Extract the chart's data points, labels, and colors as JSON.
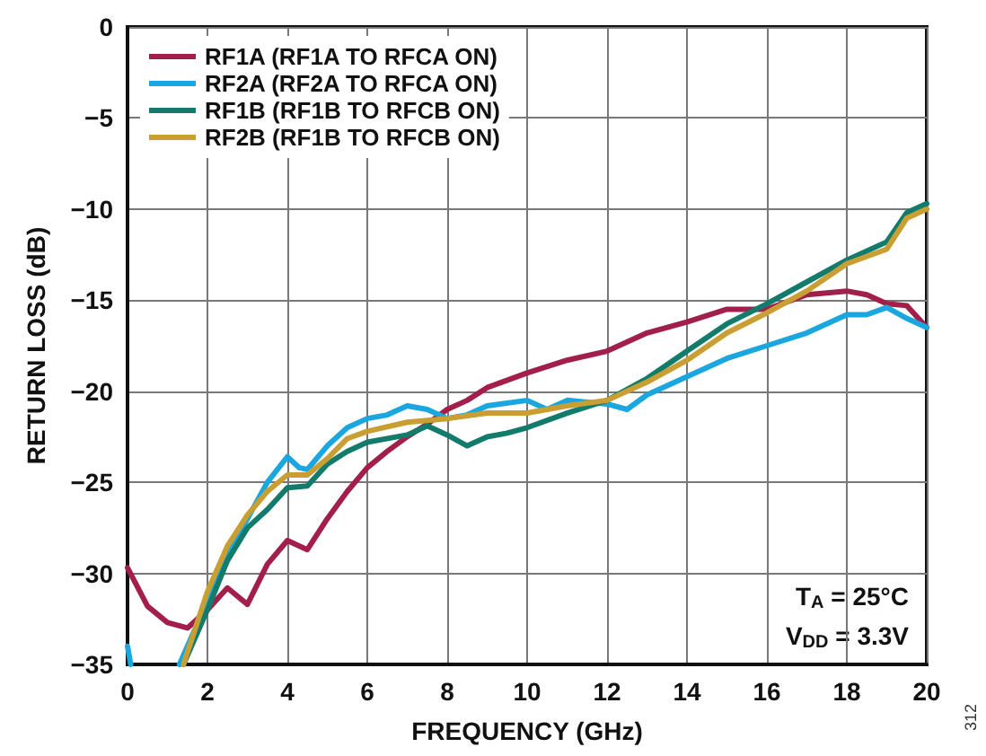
{
  "chart_data": {
    "type": "line",
    "xlabel": "FREQUENCY (GHz)",
    "ylabel": "RETURN LOSS (dB)",
    "xlim": [
      0,
      20
    ],
    "xticks": [
      0,
      2,
      4,
      6,
      8,
      10,
      12,
      14,
      16,
      18,
      20
    ],
    "ylim": [
      -35,
      0
    ],
    "yticks": [
      -35,
      -30,
      -25,
      -20,
      -15,
      -10,
      -5,
      0
    ],
    "grid": true,
    "legend": "top left",
    "line_style": "solid",
    "marker": "none",
    "annotations": [
      "T$_{A}$ = 25°C",
      "V$_{DD}$ = 3.3V",
      "312"
    ],
    "series": [
      {
        "name": "RF1A (RF1A TO RFCA ON)",
        "color": "#a31f4b",
        "x": [
          0,
          0.5,
          1,
          1.5,
          2,
          2.5,
          3,
          3.5,
          4,
          4.5,
          5,
          5.5,
          6,
          6.5,
          7,
          7.5,
          8,
          8.5,
          9,
          10,
          11,
          12,
          13,
          14,
          15,
          16,
          17,
          18,
          18.5,
          19,
          19.5,
          20
        ],
        "values": [
          -29.7,
          -31.8,
          -32.7,
          -33,
          -32,
          -30.8,
          -31.7,
          -29.5,
          -28.2,
          -28.7,
          -27,
          -25.5,
          -24.2,
          -23.3,
          -22.5,
          -21.8,
          -21,
          -20.5,
          -19.8,
          -19,
          -18.3,
          -17.8,
          -16.8,
          -16.2,
          -15.5,
          -15.5,
          -14.7,
          -14.5,
          -14.7,
          -15.2,
          -15.3,
          -16.5
        ]
      },
      {
        "name": "RF2A (RF2A TO RFCA ON)",
        "color": "#1aa7df",
        "x": [
          0,
          0.08,
          0.7,
          1.3,
          1.5,
          2,
          2.5,
          3,
          3.5,
          4,
          4.3,
          4.5,
          5,
          5.5,
          6,
          6.5,
          7,
          7.5,
          8,
          8.5,
          9,
          10,
          10.5,
          11,
          11.5,
          12,
          12.5,
          13,
          14,
          15,
          16,
          17,
          18,
          18.5,
          19,
          19.5,
          20
        ],
        "values": [
          -34,
          -35,
          null,
          -35,
          -34,
          -31.5,
          -29,
          -27,
          -25,
          -23.6,
          -24.2,
          -24.3,
          -23,
          -22,
          -21.5,
          -21.3,
          -20.8,
          -21,
          -21.5,
          -21.3,
          -20.8,
          -20.5,
          -21,
          -20.5,
          -20.6,
          -20.7,
          -21,
          -20.2,
          -19.2,
          -18.2,
          -17.5,
          -16.8,
          -15.8,
          -15.8,
          -15.4,
          -16,
          -16.5
        ]
      },
      {
        "name": "RF1B (RF1B TO RFCB ON)",
        "color": "#137b6b",
        "x": [
          1.4,
          2,
          2.5,
          3,
          3.5,
          4,
          4.5,
          5,
          5.5,
          6,
          7,
          7.5,
          8,
          8.5,
          9,
          9.5,
          10,
          11,
          12,
          13,
          14,
          15,
          16,
          17,
          18,
          19,
          19.5,
          20
        ],
        "values": [
          -35,
          -32,
          -29.3,
          -27.5,
          -26.5,
          -25.3,
          -25.2,
          -24,
          -23.3,
          -22.8,
          -22.4,
          -21.9,
          -22.4,
          -23,
          -22.5,
          -22.3,
          -22,
          -21.2,
          -20.5,
          -19.3,
          -17.8,
          -16.3,
          -15.2,
          -14,
          -12.8,
          -11.8,
          -10.2,
          -9.7
        ]
      },
      {
        "name": "RF2B (RF1B TO RFCB ON)",
        "color": "#c99f33",
        "x": [
          1.4,
          2,
          2.5,
          3,
          3.5,
          4,
          4.5,
          5,
          5.5,
          6,
          7,
          8,
          9,
          10,
          11,
          12,
          13,
          14,
          15,
          16,
          17,
          18,
          19,
          19.5,
          20
        ],
        "values": [
          -35,
          -31,
          -28.5,
          -26.8,
          -25.5,
          -24.6,
          -24.6,
          -23.7,
          -22.6,
          -22.2,
          -21.7,
          -21.5,
          -21.2,
          -21.2,
          -20.8,
          -20.5,
          -19.5,
          -18.3,
          -16.8,
          -15.7,
          -14.5,
          -13,
          -12.2,
          -10.5,
          -10
        ]
      }
    ]
  }
}
